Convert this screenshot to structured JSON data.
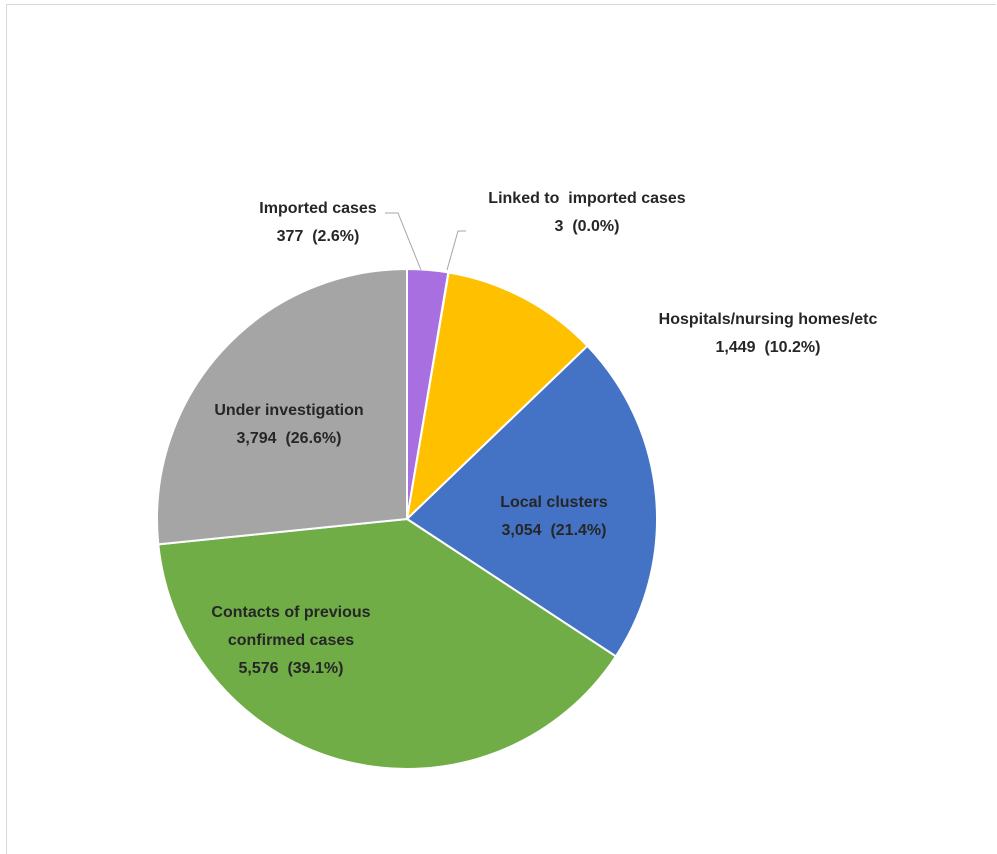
{
  "chart_data": {
    "type": "pie",
    "title": "",
    "start_angle_deg": 0,
    "direction": "clockwise",
    "slices": [
      {
        "name": "Imported cases",
        "value": 377,
        "value_label": "377",
        "percent_label": "(2.6%)",
        "color": "#a86fe0"
      },
      {
        "name": "Linked to  imported cases",
        "value": 3,
        "value_label": "3",
        "percent_label": "(0.0%)",
        "color": "#ed7d31"
      },
      {
        "name": "Hospitals/nursing homes/etc",
        "value": 1449,
        "value_label": "1,449",
        "percent_label": "(10.2%)",
        "color": "#ffc000"
      },
      {
        "name": "Local clusters",
        "value": 3054,
        "value_label": "3,054",
        "percent_label": "(21.4%)",
        "color": "#4472c4"
      },
      {
        "name": "Contacts of previous confirmed cases",
        "value": 5576,
        "value_label": "5,576",
        "percent_label": "(39.1%)",
        "color": "#70ad47"
      },
      {
        "name": "Under investigation",
        "value": 3794,
        "value_label": "3,794",
        "percent_label": "(26.6%)",
        "color": "#a5a5a5"
      }
    ],
    "data_labels": [
      {
        "lines": [
          "Imported cases",
          "377  (2.6%)"
        ],
        "anchor": "middle",
        "inside": false
      },
      {
        "lines": [
          "Linked to  imported cases",
          "3  (0.0%)"
        ],
        "anchor": "middle",
        "inside": false
      },
      {
        "lines": [
          "Hospitals/nursing homes/etc",
          "1,449  (10.2%)"
        ],
        "anchor": "middle",
        "inside": false
      },
      {
        "lines": [
          "Local clusters",
          "3,054  (21.4%)"
        ],
        "anchor": "middle",
        "inside": true
      },
      {
        "lines": [
          "Contacts of previous",
          "confirmed cases",
          "5,576  (39.1%)"
        ],
        "anchor": "middle",
        "inside": true
      },
      {
        "lines": [
          "Under investigation",
          "3,794  (26.6%)"
        ],
        "anchor": "middle",
        "inside": true
      }
    ],
    "legend": "none"
  }
}
